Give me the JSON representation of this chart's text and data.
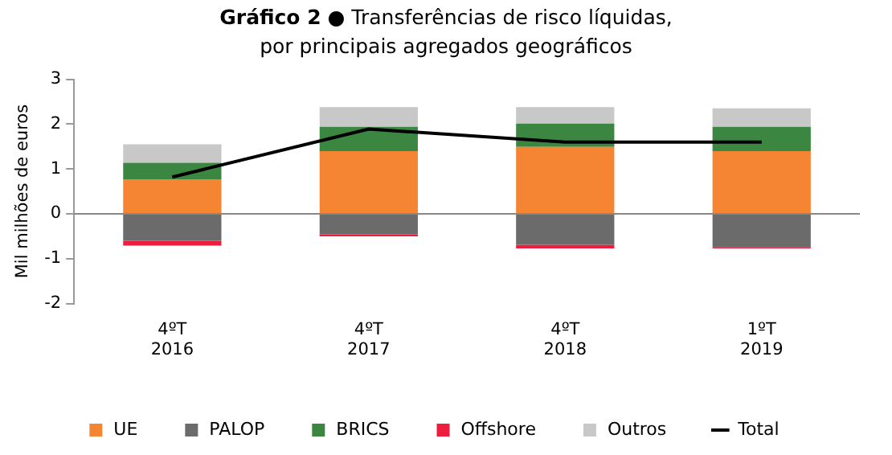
{
  "chart_data": {
    "type": "bar",
    "title": "Gráfico 2",
    "subtitle": "● Transferências de risco líquidas, por principais agregados geográficos",
    "ylabel": "Mil milhões de euros",
    "categories": [
      "4ºT\n2016",
      "4ºT\n2017",
      "4ºT\n2018",
      "1ºT\n2019"
    ],
    "stacked": true,
    "ylim": [
      -2,
      3
    ],
    "yticks": [
      -2,
      -1,
      0,
      1,
      2,
      3
    ],
    "grid": false,
    "legend": "bottom",
    "ref_lines": [
      {
        "axis": "y",
        "value": 0,
        "color": "#888888"
      }
    ],
    "series": [
      {
        "name": "UE",
        "color": "#f58433",
        "values": [
          0.77,
          1.4,
          1.49,
          1.4
        ]
      },
      {
        "name": "PALOP",
        "color": "#6b6b6b",
        "values": [
          -0.6,
          -0.46,
          -0.69,
          -0.74
        ]
      },
      {
        "name": "BRICS",
        "color": "#3b8640",
        "values": [
          0.37,
          0.54,
          0.52,
          0.54
        ]
      },
      {
        "name": "Offshore",
        "color": "#ee1c3d",
        "values": [
          -0.11,
          -0.04,
          -0.08,
          -0.03
        ]
      },
      {
        "name": "Outros",
        "color": "#c8c8c8",
        "values": [
          0.41,
          0.44,
          0.37,
          0.41
        ]
      },
      {
        "name": "Total",
        "type": "line",
        "color": "#000000",
        "values": [
          0.82,
          1.89,
          1.6,
          1.6
        ],
        "marker": "none"
      }
    ]
  }
}
